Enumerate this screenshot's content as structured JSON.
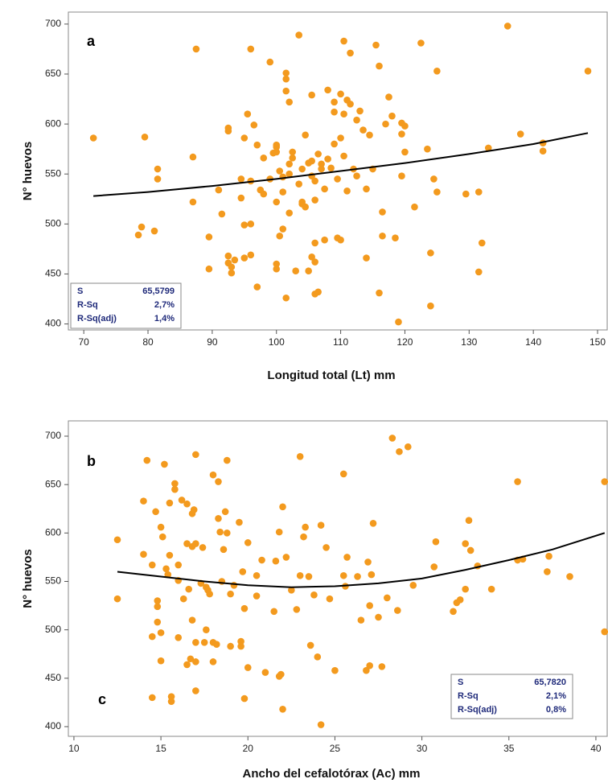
{
  "chart_data": [
    {
      "type": "scatter",
      "panel_label": "a",
      "xlabel": "Longitud total (Lt) mm",
      "ylabel": "N° huevos",
      "xlim": [
        67.6,
        151.5
      ],
      "ylim": [
        394,
        712
      ],
      "xticks": [
        70,
        80,
        90,
        100,
        110,
        120,
        130,
        140,
        150
      ],
      "yticks": [
        400,
        450,
        500,
        550,
        600,
        650,
        700
      ],
      "color": "#f39a1e",
      "x": [
        71.5,
        78.5,
        79,
        79.5,
        81,
        81.5,
        81.5,
        87,
        87,
        87.5,
        89.5,
        89.5,
        91,
        91.5,
        92.5,
        92.5,
        92.5,
        92.5,
        93,
        93,
        93.5,
        94.5,
        94.5,
        95,
        95,
        95,
        95.5,
        96,
        96,
        96,
        96,
        96.5,
        97,
        97,
        97.5,
        98,
        98,
        99,
        99,
        99.5,
        100,
        100,
        100,
        100,
        100,
        100,
        100.5,
        100.5,
        101,
        101,
        101,
        101.5,
        101.5,
        101.5,
        101.5,
        102,
        102,
        102,
        102,
        102.5,
        102.5,
        103,
        103.5,
        103.5,
        104,
        104,
        104,
        104.5,
        104.5,
        105,
        105,
        105.5,
        105.5,
        105.5,
        105.5,
        106,
        106,
        106,
        106,
        106,
        106.5,
        106.5,
        107,
        107,
        107.5,
        107.5,
        108,
        108,
        108.5,
        109,
        109,
        109,
        109.5,
        109.5,
        110,
        110,
        110,
        110.5,
        110.5,
        110.5,
        111,
        111,
        111.5,
        111.5,
        112,
        112.5,
        112.5,
        113,
        113.5,
        114,
        114,
        114.5,
        115,
        115.5,
        116,
        116,
        116.5,
        116.5,
        117,
        117.5,
        118,
        118.5,
        119,
        119.5,
        119.5,
        120,
        121.5,
        122.5,
        123.5,
        124,
        124,
        124.5,
        125,
        125,
        129.5,
        131.5,
        131.5,
        132,
        133,
        138,
        141.5,
        141.5,
        148.5,
        136,
        119.5,
        120
      ],
      "values": [
        586,
        489,
        497,
        587,
        493,
        555,
        545,
        522,
        567,
        675,
        455,
        487,
        534,
        510,
        468,
        461,
        593,
        596,
        457,
        451,
        464,
        526,
        545,
        499,
        466,
        586,
        610,
        675,
        469,
        500,
        543,
        599,
        579,
        437,
        534,
        530,
        566,
        662,
        545,
        571,
        579,
        577,
        572,
        522,
        460,
        455,
        553,
        488,
        532,
        495,
        547,
        426,
        651,
        645,
        633,
        622,
        511,
        550,
        560,
        572,
        566,
        453,
        540,
        689,
        522,
        555,
        520,
        517,
        589,
        561,
        453,
        548,
        467,
        563,
        629,
        543,
        430,
        524,
        481,
        462,
        432,
        570,
        555,
        560,
        484,
        535,
        634,
        565,
        556,
        580,
        612,
        622,
        486,
        545,
        630,
        586,
        484,
        568,
        610,
        683,
        624,
        533,
        671,
        620,
        555,
        548,
        604,
        613,
        594,
        535,
        466,
        589,
        555,
        679,
        658,
        431,
        512,
        488,
        600,
        627,
        608,
        486,
        402,
        601,
        548,
        572,
        517,
        681,
        575,
        418,
        471,
        545,
        532,
        653,
        530,
        532,
        452,
        481,
        576,
        590,
        581,
        573,
        653,
        698,
        590,
        598
      ],
      "fit": {
        "color": "#000000",
        "x": [
          71.5,
          80,
          90,
          100,
          110,
          120,
          130,
          140,
          148.5
        ],
        "values": [
          528,
          532,
          538,
          545,
          553,
          561,
          570,
          580,
          591
        ]
      },
      "stats": {
        "labels": [
          "S",
          "R-Sq",
          "R-Sq(adj)"
        ],
        "values": [
          "65,5799",
          "2,7%",
          "1,4%"
        ]
      }
    },
    {
      "type": "scatter",
      "panel_label": "b",
      "annotation": "c",
      "xlabel": "Ancho del cefalotórax (Ac) mm",
      "ylabel": "N° huevos",
      "xlim": [
        9.68,
        40.65
      ],
      "ylim": [
        390,
        715.8
      ],
      "xticks": [
        10,
        15,
        20,
        25,
        30,
        35,
        40
      ],
      "yticks": [
        400,
        450,
        500,
        550,
        600,
        650,
        700
      ],
      "color": "#f39a1e",
      "x": [
        12.5,
        12.5,
        14,
        14,
        14.2,
        14.5,
        14.5,
        14.5,
        14.7,
        14.8,
        14.8,
        14.8,
        15,
        15,
        15,
        15.1,
        15.2,
        15.3,
        15.4,
        15.5,
        15.5,
        15.6,
        15.6,
        15.8,
        15.8,
        16,
        16,
        16,
        16.2,
        16.3,
        16.5,
        16.5,
        16.5,
        16.6,
        16.7,
        16.8,
        16.8,
        16.8,
        16.9,
        17,
        17,
        17,
        17,
        17,
        17.3,
        17.4,
        17.5,
        17.6,
        17.6,
        17.7,
        17.8,
        18,
        18,
        18,
        18.2,
        18.3,
        18.3,
        18.4,
        18.5,
        18.6,
        18.7,
        18.8,
        18.8,
        19,
        19.2,
        19,
        19.5,
        19.6,
        19.6,
        19.7,
        19.8,
        19.8,
        20,
        20,
        20.5,
        20.5,
        20.8,
        21,
        21.5,
        21.6,
        21.8,
        21.8,
        21.9,
        22,
        22,
        22.2,
        22.5,
        22.8,
        23,
        23,
        23.2,
        23.3,
        23.5,
        23.6,
        23.8,
        24,
        24.2,
        24.2,
        24.5,
        24.7,
        25,
        25.5,
        25.5,
        25.6,
        25.7,
        26.3,
        26.5,
        26.8,
        26.9,
        27,
        27,
        27.1,
        27.2,
        27.5,
        27.7,
        28,
        28.3,
        28.6,
        28.7,
        29.2,
        29.5,
        30.7,
        30.8,
        31.8,
        32,
        32.2,
        32.5,
        32.5,
        32.7,
        32.8,
        33.2,
        34,
        35.5,
        35.5,
        35.8,
        37.2,
        37.3,
        38.5,
        40.5,
        40.5
      ],
      "values": [
        593,
        532,
        578,
        633,
        675,
        493,
        430,
        567,
        622,
        530,
        524,
        508,
        468,
        497,
        606,
        596,
        671,
        563,
        557,
        631,
        577,
        431,
        426,
        645,
        651,
        567,
        551,
        492,
        634,
        532,
        464,
        630,
        589,
        542,
        470,
        620,
        586,
        510,
        624,
        681,
        589,
        487,
        437,
        467,
        548,
        585,
        487,
        500,
        544,
        541,
        537,
        660,
        467,
        487,
        485,
        615,
        653,
        601,
        550,
        583,
        622,
        600,
        675,
        483,
        546,
        537,
        611,
        488,
        483,
        560,
        429,
        522,
        590,
        461,
        556,
        535,
        572,
        456,
        519,
        571,
        601,
        452,
        454,
        418,
        627,
        575,
        541,
        521,
        556,
        679,
        596,
        606,
        555,
        484,
        536,
        472,
        402,
        608,
        585,
        532,
        458,
        556,
        661,
        545,
        575,
        555,
        510,
        458,
        570,
        463,
        525,
        557,
        610,
        513,
        462,
        533,
        698,
        520,
        684,
        689,
        546,
        565,
        591,
        519,
        528,
        531,
        542,
        589,
        613,
        582,
        566,
        542,
        653,
        572,
        573,
        560,
        576,
        555,
        653,
        498
      ],
      "fit": {
        "color": "#000000",
        "x": [
          12.5,
          15,
          17.5,
          20,
          22.5,
          25,
          27.5,
          30,
          32.5,
          35,
          37.5,
          40.5
        ],
        "values": [
          560,
          555,
          550,
          546,
          544,
          545,
          548,
          553,
          562,
          572,
          583,
          600
        ]
      },
      "stats": {
        "labels": [
          "S",
          "R-Sq",
          "R-Sq(adj)"
        ],
        "values": [
          "65,7820",
          "2,1%",
          "0,8%"
        ]
      }
    }
  ]
}
